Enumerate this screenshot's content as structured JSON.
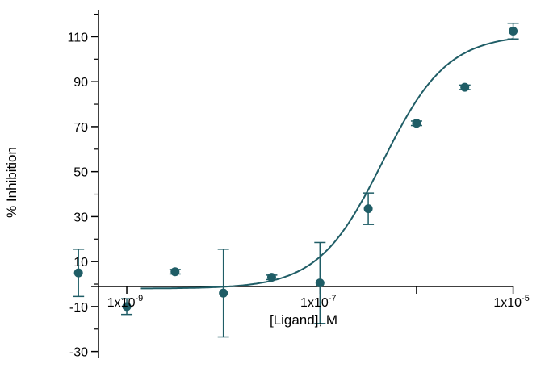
{
  "chart_data": {
    "type": "scatter",
    "xscale": "log",
    "xlabel": "[Ligand], M",
    "ylabel": "% Inhibition",
    "xlim": [
      2.5e-10,
      1.6e-05
    ],
    "ylim": [
      -33,
      122
    ],
    "xticks": [
      {
        "value": 1e-09,
        "base": "1x10",
        "exp": "-9"
      },
      {
        "value": 1e-07,
        "base": "1x10",
        "exp": "-7"
      },
      {
        "value": 1e-05,
        "base": "1x10",
        "exp": "-5"
      }
    ],
    "yticks": [
      -30,
      -10,
      10,
      30,
      50,
      70,
      90,
      110
    ],
    "grid": false,
    "color": "#1f5d66",
    "points": [
      {
        "x": 3.16e-10,
        "y": 5,
        "err": 10.5
      },
      {
        "x": 1e-09,
        "y": -10,
        "err": 3.5
      },
      {
        "x": 3.16e-09,
        "y": 5.5,
        "err": 1
      },
      {
        "x": 1e-08,
        "y": -4,
        "err": 19.5
      },
      {
        "x": 3.16e-08,
        "y": 3,
        "err": 1
      },
      {
        "x": 1e-07,
        "y": 0.5,
        "err": 18
      },
      {
        "x": 3.16e-07,
        "y": 33.5,
        "err": 7
      },
      {
        "x": 1e-06,
        "y": 71.5,
        "err": 1
      },
      {
        "x": 3.16e-06,
        "y": 87.5,
        "err": 1
      },
      {
        "x": 1e-05,
        "y": 112.5,
        "err": 3.5
      }
    ],
    "fit": {
      "bottom": -2,
      "top": 111,
      "log_ec50": -6.35,
      "hill": 1.3
    }
  }
}
